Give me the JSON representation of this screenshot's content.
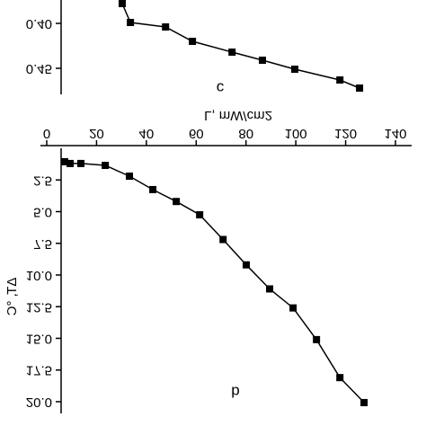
{
  "chart_data": [
    {
      "type": "line",
      "annotation": "c",
      "x": [
        30.3,
        33.6,
        47.7,
        58.5,
        74.4,
        86.6,
        99.6,
        117.7,
        125.6
      ],
      "series": [
        {
          "name": "c",
          "color": "#000000",
          "values": [
            0.378,
            0.399,
            0.404,
            0.42,
            0.432,
            0.441,
            0.451,
            0.463,
            0.472
          ]
        }
      ],
      "xlim": [
        0,
        140
      ],
      "ylim": [
        0.372,
        0.477
      ],
      "yticks": [
        {
          "value": 0.4,
          "label": "0.40"
        },
        {
          "value": 0.45,
          "label": "0.45"
        }
      ]
    },
    {
      "type": "line",
      "annotation": "b",
      "x_label": "L, mW/cm2",
      "y_label": "ΔT, °C",
      "x": [
        7.2,
        9.4,
        13.7,
        23.5,
        33.2,
        42.6,
        52,
        61.4,
        70.8,
        80.1,
        89.5,
        98.9,
        108.3,
        117.7,
        127.4
      ],
      "series": [
        {
          "name": "b",
          "color": "#000000",
          "values": [
            1.06,
            1.2,
            1.2,
            1.35,
            2.2,
            3.26,
            4.2,
            5.25,
            7.2,
            9.2,
            11.1,
            12.6,
            15.1,
            18.1,
            20.07
          ]
        }
      ],
      "xlim": [
        0,
        140
      ],
      "ylim": [
        0,
        20.5
      ],
      "xticks": [
        0,
        20,
        40,
        60,
        80,
        100,
        120,
        140
      ],
      "yticks": [
        2.5,
        {
          "value": 5,
          "label": "5.0"
        },
        7.5,
        {
          "value": 10,
          "label": "10.0"
        },
        12.5,
        {
          "value": 15,
          "label": "15.0"
        },
        17.5,
        {
          "value": 20,
          "label": "20.0"
        }
      ]
    }
  ]
}
